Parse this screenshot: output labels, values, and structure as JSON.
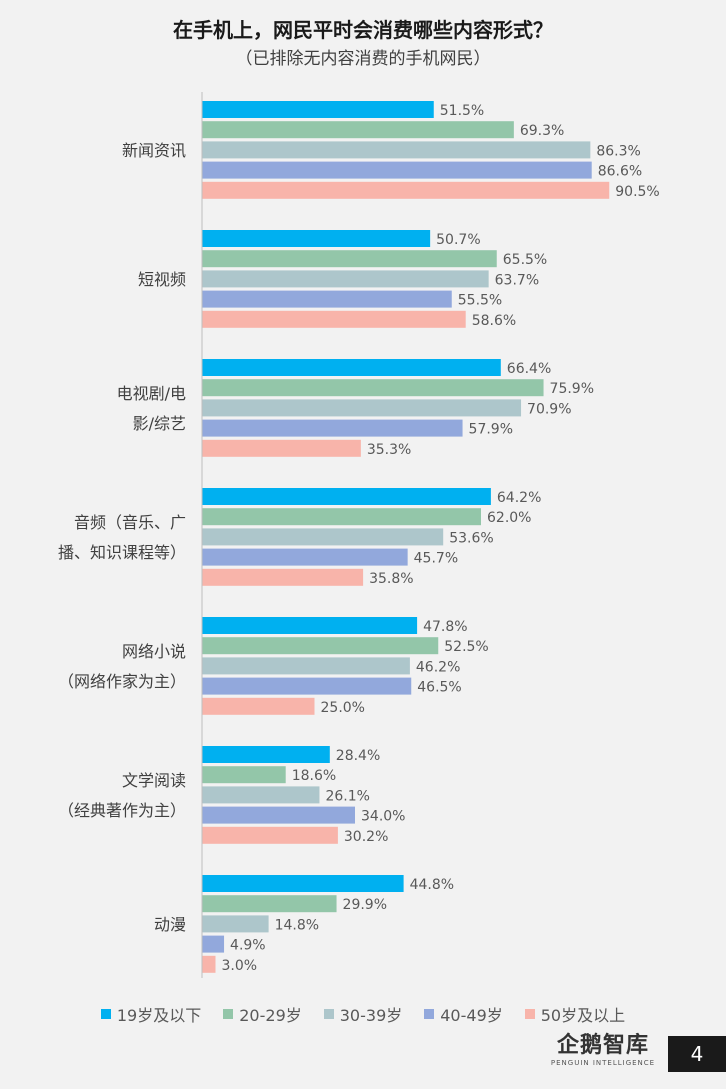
{
  "header": {
    "title": "在手机上，网民平时会消费哪些内容形式？",
    "subtitle": "（已排除无内容消费的手机网民）"
  },
  "chart_data": {
    "type": "bar",
    "orientation": "horizontal",
    "title": "在手机上，网民平时会消费哪些内容形式？",
    "subtitle": "（已排除无内容消费的手机网民）",
    "categories": [
      [
        "新闻资讯"
      ],
      [
        "短视频"
      ],
      [
        "电视剧/电",
        "影/综艺"
      ],
      [
        "音频（音乐、广",
        "播、知识课程等）"
      ],
      [
        "网络小说",
        "（网络作家为主）"
      ],
      [
        "文学阅读",
        "（经典著作为主）"
      ],
      [
        "动漫"
      ]
    ],
    "series": [
      {
        "name": "19岁及以下",
        "color": "#00b0f0",
        "values": [
          51.5,
          50.7,
          66.4,
          64.2,
          47.8,
          28.4,
          44.8
        ]
      },
      {
        "name": "20-29岁",
        "color": "#93c6a9",
        "values": [
          69.3,
          65.5,
          75.9,
          62.0,
          52.5,
          18.6,
          29.9
        ]
      },
      {
        "name": "30-39岁",
        "color": "#adc6cb",
        "values": [
          86.3,
          63.7,
          70.9,
          53.6,
          46.2,
          26.1,
          14.8
        ]
      },
      {
        "name": "40-49岁",
        "color": "#92a8dc",
        "values": [
          86.6,
          55.5,
          57.9,
          45.7,
          46.5,
          34.0,
          4.9
        ]
      },
      {
        "name": "50岁及以上",
        "color": "#f8b4aa",
        "values": [
          90.5,
          58.6,
          35.3,
          35.8,
          25.0,
          30.2,
          3.0
        ]
      }
    ],
    "value_suffix": "%",
    "xlim": [
      0,
      100
    ],
    "grid": false,
    "legend_position": "bottom"
  },
  "logo": {
    "text": "企鹅智库",
    "subtext": "PENGUIN INTELLIGENCE"
  },
  "page_number": "4"
}
